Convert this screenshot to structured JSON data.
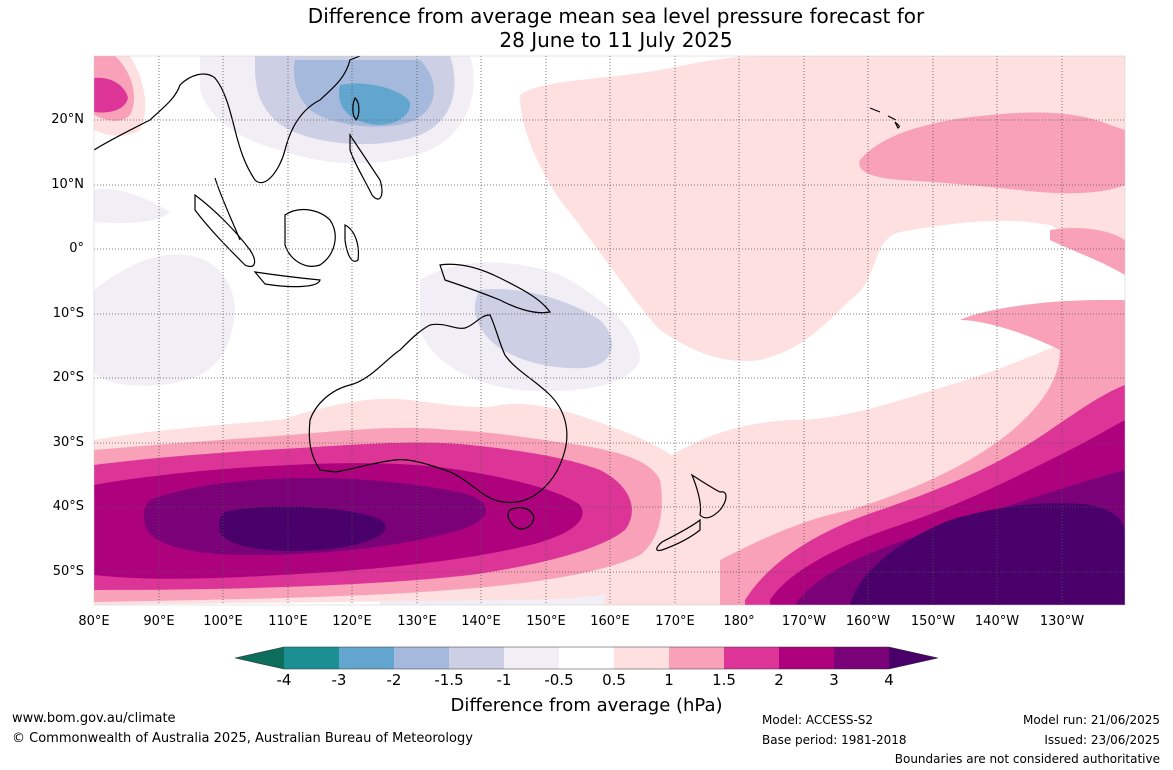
{
  "title": {
    "line1": "Difference from average mean sea level pressure forecast for",
    "line2": "28 June to 11 July 2025"
  },
  "lat_labels": [
    "20°N",
    "10°N",
    "0°",
    "10°S",
    "20°S",
    "30°S",
    "40°S",
    "50°S"
  ],
  "lon_labels": [
    "80°E",
    "90°E",
    "100°E",
    "110°E",
    "120°E",
    "130°E",
    "140°E",
    "150°E",
    "160°E",
    "170°E",
    "180°",
    "170°W",
    "160°W",
    "150°W",
    "140°W",
    "130°W"
  ],
  "colorbar": {
    "title": "Difference from average (hPa)",
    "ticks": [
      "-4",
      "-3",
      "-2",
      "-1.5",
      "-1",
      "-0.5",
      "0.5",
      "1",
      "1.5",
      "2",
      "3",
      "4"
    ],
    "colors": {
      "below_-4": "#0c6d5b",
      "-4_-3": "#1b8f92",
      "-3_-2": "#62a6cf",
      "-2_-1.5": "#a4b9dc",
      "-1.5_-1": "#cdd0e5",
      "-1_-0.5": "#f1eef5",
      "-0.5_0.5": "#ffffff",
      "0.5_1": "#fde0df",
      "1_1.5": "#f9a1b8",
      "1.5_2": "#dd3497",
      "2_3": "#ae017e",
      "3_4": "#7a0177",
      "above_4": "#49006a"
    }
  },
  "footer": {
    "website": "www.bom.gov.au/climate",
    "copyright": "© Commonwealth of Australia 2025, Australian Bureau of Meteorology",
    "model": "Model: ACCESS-S2",
    "base_period": "Base period: 1981-2018",
    "model_run": "Model run: 21/06/2025",
    "issued": "Issued: 23/06/2025",
    "disclaimer": "Boundaries are not considered authoritative"
  }
}
